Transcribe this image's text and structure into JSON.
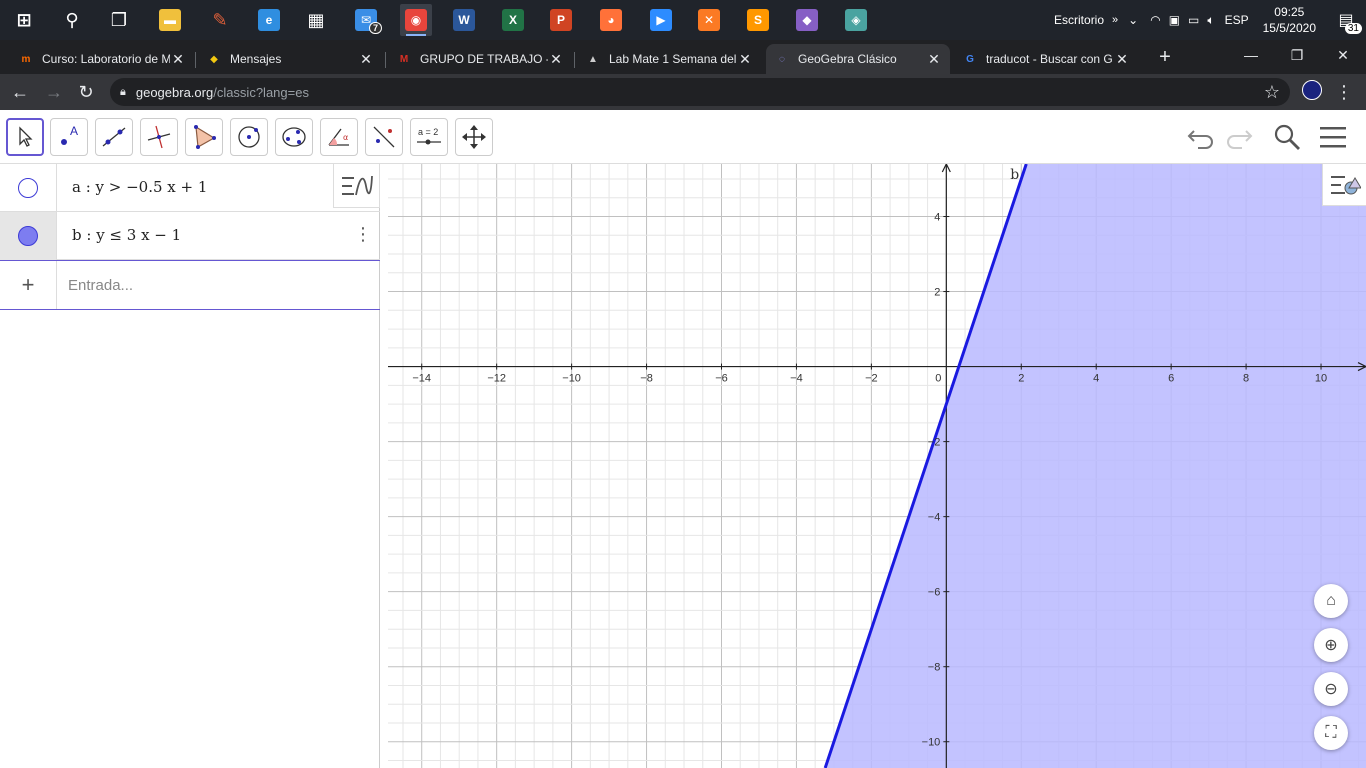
{
  "taskbar": {
    "apps": [
      {
        "name": "windows-start-icon",
        "glyph": "⊞",
        "color": "#ffffff"
      },
      {
        "name": "search-icon",
        "glyph": "⚲",
        "color": "#ffffff"
      },
      {
        "name": "task-view-icon",
        "glyph": "❐",
        "color": "#ffffff"
      },
      {
        "name": "file-explorer-icon",
        "glyph": "▬",
        "color": "#f0c03c"
      },
      {
        "name": "paint-icon",
        "glyph": "✎",
        "color": "#e0603a"
      },
      {
        "name": "edge-icon",
        "glyph": "e",
        "color": "#2f8ee0"
      },
      {
        "name": "store-icon",
        "glyph": "▦",
        "color": "#ffffff"
      },
      {
        "name": "mail-icon",
        "glyph": "✉",
        "color": "#3a8ee6"
      },
      {
        "name": "chrome-icon",
        "glyph": "◉",
        "color": "#e8453c"
      },
      {
        "name": "word-icon",
        "glyph": "W",
        "color": "#2b579a"
      },
      {
        "name": "excel-icon",
        "glyph": "X",
        "color": "#217346"
      },
      {
        "name": "powerpoint-icon",
        "glyph": "P",
        "color": "#d04423"
      },
      {
        "name": "firefox-icon",
        "glyph": "◕",
        "color": "#ff7139"
      },
      {
        "name": "zoom-icon",
        "glyph": "▶",
        "color": "#2d8cff"
      },
      {
        "name": "xampp-icon",
        "glyph": "✕",
        "color": "#fb7a24"
      },
      {
        "name": "sublime-icon",
        "glyph": "S",
        "color": "#ff9800"
      },
      {
        "name": "visual-studio-icon",
        "glyph": "◆",
        "color": "#865fc5"
      },
      {
        "name": "app-icon",
        "glyph": "◈",
        "color": "#4aa3a0"
      }
    ],
    "mail_badge": "7",
    "desktop_label": "Escritorio",
    "language": "ESP",
    "time": "09:25",
    "date": "15/5/2020",
    "notifications": "31"
  },
  "browser": {
    "tabs": [
      {
        "title": "Curso: Laboratorio de M",
        "fav": "m",
        "fav_color": "#ff6a00"
      },
      {
        "title": "Mensajes",
        "fav": "◆",
        "fav_color": "#f2c811"
      },
      {
        "title": "GRUPO DE TRABAJO - c",
        "fav": "M",
        "fav_color": "#d93025"
      },
      {
        "title": "Lab Mate 1 Semana del",
        "fav": "▲",
        "fav_color": "#cccccc"
      },
      {
        "title": "GeoGebra Clásico",
        "fav": "◌",
        "fav_color": "#9999ff"
      },
      {
        "title": "traducot - Buscar con G",
        "fav": "G",
        "fav_color": "#4285f4"
      }
    ],
    "active_tab": 4,
    "url_host": "geogebra.org",
    "url_path": "/classic?lang=es"
  },
  "algebra": {
    "items": [
      {
        "label": "a : y > −0.5 x + 1",
        "visible": false,
        "color": "#3d3bd6"
      },
      {
        "label": "b : y ≤ 3 x − 1",
        "visible": true,
        "color": "#7d7df0"
      }
    ],
    "input_placeholder": "Entrada..."
  },
  "graph": {
    "x_ticks": [
      "−14",
      "−12",
      "−10",
      "−8",
      "−6",
      "−4",
      "−2",
      "0",
      "2",
      "4",
      "6",
      "8",
      "10"
    ],
    "y_ticks": [
      "4",
      "2",
      "−2",
      "−4",
      "−6",
      "−8",
      "−10"
    ],
    "x_range": [
      -14.9,
      11.2
    ],
    "y_range": [
      -10.7,
      5.4
    ],
    "line_label": "b",
    "line_color": "#1a1ae0",
    "fill_color": "#b8b8ff",
    "inequality": {
      "slope": 3,
      "intercept": -1,
      "region": "below-or-equal"
    }
  }
}
